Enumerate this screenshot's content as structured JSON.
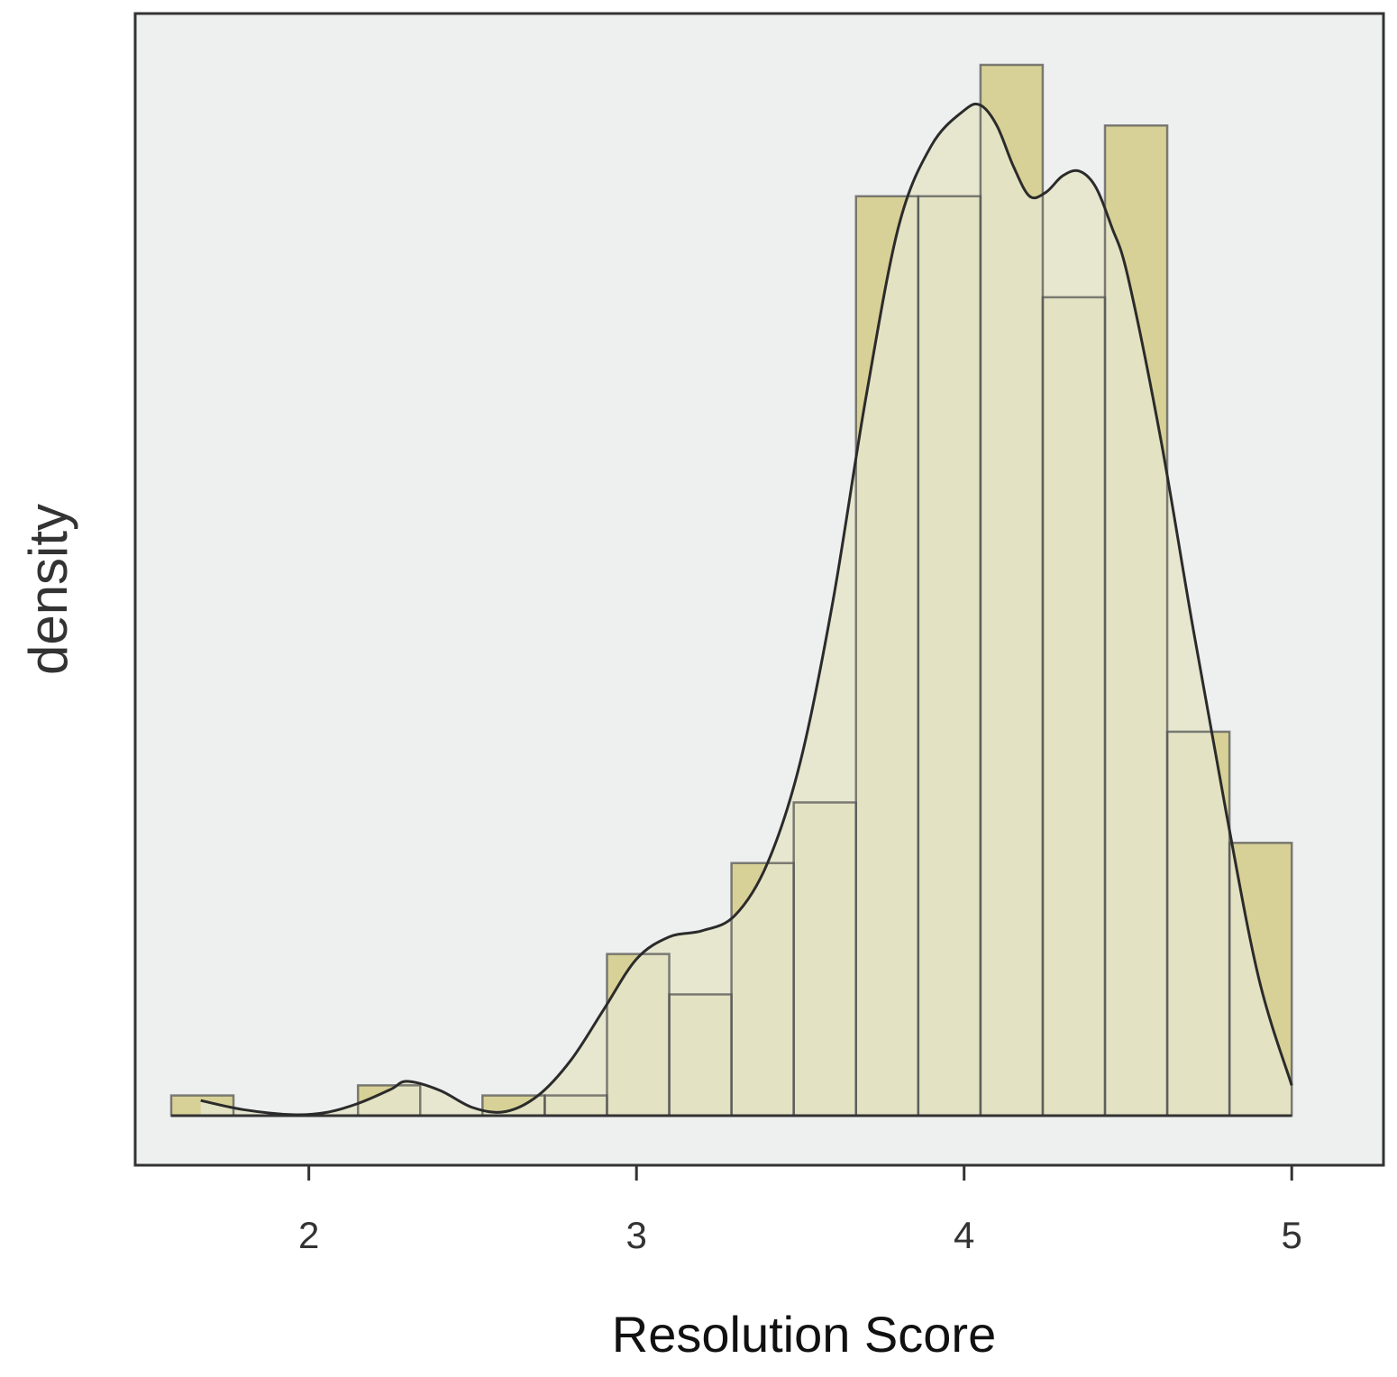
{
  "chart_data": {
    "type": "bar",
    "subtype": "histogram-with-density",
    "xlabel": "Resolution Score",
    "ylabel": "density",
    "xlim": [
      1.47,
      5.28
    ],
    "ylim": [
      0,
      100
    ],
    "x_ticks": [
      2,
      3,
      4,
      5
    ],
    "y_ticks_shown": false,
    "grid": false,
    "bin_width": 0.19,
    "bins": [
      {
        "start": 1.58,
        "end": 1.77,
        "value": 2
      },
      {
        "start": 1.77,
        "end": 1.96,
        "value": 0
      },
      {
        "start": 1.96,
        "end": 2.15,
        "value": 0
      },
      {
        "start": 2.15,
        "end": 2.34,
        "value": 3
      },
      {
        "start": 2.34,
        "end": 2.53,
        "value": 0
      },
      {
        "start": 2.53,
        "end": 2.72,
        "value": 2
      },
      {
        "start": 2.72,
        "end": 2.91,
        "value": 2
      },
      {
        "start": 2.91,
        "end": 3.1,
        "value": 16
      },
      {
        "start": 3.1,
        "end": 3.29,
        "value": 12
      },
      {
        "start": 3.29,
        "end": 3.48,
        "value": 25
      },
      {
        "start": 3.48,
        "end": 3.67,
        "value": 31
      },
      {
        "start": 3.67,
        "end": 3.86,
        "value": 91
      },
      {
        "start": 3.86,
        "end": 4.05,
        "value": 91
      },
      {
        "start": 4.05,
        "end": 4.24,
        "value": 104
      },
      {
        "start": 4.24,
        "end": 4.43,
        "value": 81
      },
      {
        "start": 4.43,
        "end": 4.62,
        "value": 98
      },
      {
        "start": 4.62,
        "end": 4.81,
        "value": 38
      },
      {
        "start": 4.81,
        "end": 5.0,
        "value": 27
      }
    ],
    "density_curve": {
      "x": [
        1.67,
        1.8,
        1.95,
        2.05,
        2.15,
        2.25,
        2.3,
        2.4,
        2.5,
        2.6,
        2.7,
        2.8,
        2.9,
        3.0,
        3.1,
        3.2,
        3.3,
        3.4,
        3.5,
        3.6,
        3.7,
        3.8,
        3.9,
        4.0,
        4.05,
        4.1,
        4.15,
        4.2,
        4.25,
        4.3,
        4.35,
        4.4,
        4.45,
        4.5,
        4.6,
        4.7,
        4.8,
        4.9,
        5.0
      ],
      "y": [
        1.5,
        0.6,
        0.1,
        0.3,
        1.2,
        2.6,
        3.4,
        2.5,
        0.8,
        0.4,
        2.0,
        5.5,
        10.5,
        15.5,
        17.7,
        18.3,
        19.8,
        25.0,
        35.0,
        51.0,
        71.0,
        88.0,
        96.0,
        99.5,
        100.0,
        98.0,
        94.0,
        91.0,
        91.4,
        93.0,
        93.5,
        92.0,
        88.0,
        83.0,
        67.0,
        48.0,
        30.0,
        13.5,
        3.0
      ]
    },
    "colors": {
      "bar_fill": "#d8d197",
      "curve_fill": "#e5e5ca",
      "plot_background": "#eef0ef",
      "outline": "#333333"
    }
  }
}
